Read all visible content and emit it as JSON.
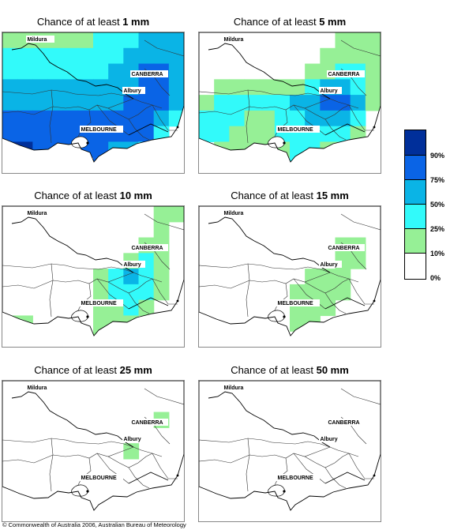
{
  "panels": [
    {
      "prefix": "Chance of at least ",
      "amount": "1 mm",
      "prob": [
        [
          1,
          1,
          1,
          1,
          1,
          1,
          2,
          2,
          2,
          3,
          3,
          3
        ],
        [
          2,
          2,
          2,
          2,
          2,
          2,
          2,
          2,
          3,
          3,
          3,
          3
        ],
        [
          2,
          2,
          2,
          2,
          2,
          2,
          2,
          3,
          3,
          4,
          4,
          3
        ],
        [
          3,
          3,
          3,
          3,
          3,
          3,
          3,
          3,
          3,
          4,
          4,
          3
        ],
        [
          3,
          3,
          3,
          3,
          3,
          3,
          3,
          3,
          4,
          4,
          4,
          3
        ],
        [
          4,
          4,
          4,
          4,
          4,
          4,
          4,
          4,
          4,
          4,
          3,
          2
        ],
        [
          4,
          4,
          4,
          4,
          4,
          4,
          4,
          4,
          4,
          4,
          2,
          0
        ],
        [
          5,
          5,
          4,
          4,
          4,
          4,
          4,
          3,
          3,
          2,
          0,
          0
        ],
        [
          0,
          0,
          0,
          0,
          0,
          0,
          4,
          3,
          0,
          0,
          0,
          0
        ]
      ]
    },
    {
      "prefix": "Chance of at least ",
      "amount": "5 mm",
      "prob": [
        [
          0,
          0,
          0,
          0,
          0,
          0,
          0,
          0,
          0,
          1,
          1,
          1
        ],
        [
          0,
          0,
          0,
          0,
          0,
          0,
          0,
          0,
          1,
          1,
          1,
          1
        ],
        [
          0,
          0,
          0,
          0,
          0,
          0,
          0,
          1,
          1,
          2,
          2,
          1
        ],
        [
          0,
          1,
          1,
          1,
          1,
          1,
          1,
          2,
          3,
          3,
          2,
          1
        ],
        [
          1,
          2,
          2,
          2,
          2,
          2,
          3,
          3,
          4,
          4,
          3,
          1
        ],
        [
          2,
          2,
          2,
          1,
          1,
          2,
          2,
          3,
          3,
          3,
          2,
          0
        ],
        [
          2,
          2,
          1,
          1,
          1,
          2,
          2,
          2,
          2,
          2,
          1,
          0
        ],
        [
          0,
          1,
          1,
          1,
          1,
          1,
          2,
          2,
          1,
          1,
          0,
          0
        ],
        [
          0,
          0,
          0,
          0,
          0,
          0,
          2,
          1,
          0,
          0,
          0,
          0
        ]
      ]
    },
    {
      "prefix": "Chance of at least ",
      "amount": "10 mm",
      "prob": [
        [
          0,
          0,
          0,
          0,
          0,
          0,
          0,
          0,
          0,
          0,
          1,
          1
        ],
        [
          0,
          0,
          0,
          0,
          0,
          0,
          0,
          0,
          0,
          0,
          1,
          0
        ],
        [
          0,
          0,
          0,
          0,
          0,
          0,
          0,
          0,
          0,
          1,
          1,
          0
        ],
        [
          0,
          0,
          0,
          0,
          0,
          0,
          0,
          0,
          1,
          2,
          1,
          0
        ],
        [
          0,
          0,
          0,
          0,
          0,
          0,
          1,
          2,
          3,
          2,
          1,
          0
        ],
        [
          0,
          0,
          0,
          0,
          0,
          0,
          1,
          2,
          2,
          2,
          1,
          0
        ],
        [
          0,
          0,
          0,
          0,
          0,
          0,
          1,
          1,
          2,
          1,
          0,
          0
        ],
        [
          1,
          1,
          0,
          0,
          0,
          0,
          1,
          1,
          1,
          0,
          0,
          0
        ],
        [
          0,
          0,
          0,
          0,
          0,
          0,
          1,
          0,
          0,
          0,
          0,
          0
        ]
      ]
    },
    {
      "prefix": "Chance of at least ",
      "amount": "15 mm",
      "prob": [
        [
          0,
          0,
          0,
          0,
          0,
          0,
          0,
          0,
          0,
          0,
          0,
          0
        ],
        [
          0,
          0,
          0,
          0,
          0,
          0,
          0,
          0,
          0,
          0,
          0,
          0
        ],
        [
          0,
          0,
          0,
          0,
          0,
          0,
          0,
          0,
          0,
          1,
          1,
          0
        ],
        [
          0,
          0,
          0,
          0,
          0,
          0,
          0,
          0,
          0,
          1,
          1,
          0
        ],
        [
          0,
          0,
          0,
          0,
          0,
          0,
          0,
          1,
          1,
          1,
          0,
          0
        ],
        [
          0,
          0,
          0,
          0,
          0,
          0,
          1,
          1,
          1,
          1,
          0,
          0
        ],
        [
          0,
          0,
          0,
          0,
          0,
          0,
          1,
          1,
          1,
          0,
          0,
          0
        ],
        [
          0,
          0,
          0,
          0,
          0,
          0,
          1,
          1,
          0,
          0,
          0,
          0
        ],
        [
          0,
          0,
          0,
          0,
          0,
          0,
          0,
          0,
          0,
          0,
          0,
          0
        ]
      ]
    },
    {
      "prefix": "Chance of at least ",
      "amount": "25 mm",
      "prob": [
        [
          0,
          0,
          0,
          0,
          0,
          0,
          0,
          0,
          0,
          0,
          0,
          0
        ],
        [
          0,
          0,
          0,
          0,
          0,
          0,
          0,
          0,
          0,
          0,
          0,
          0
        ],
        [
          0,
          0,
          0,
          0,
          0,
          0,
          0,
          0,
          0,
          0,
          1,
          0
        ],
        [
          0,
          0,
          0,
          0,
          0,
          0,
          0,
          0,
          0,
          0,
          0,
          0
        ],
        [
          0,
          0,
          0,
          0,
          0,
          0,
          0,
          0,
          1,
          0,
          0,
          0
        ],
        [
          0,
          0,
          0,
          0,
          0,
          0,
          0,
          0,
          0,
          0,
          0,
          0
        ],
        [
          0,
          0,
          0,
          0,
          0,
          0,
          0,
          0,
          0,
          0,
          0,
          0
        ],
        [
          0,
          0,
          0,
          0,
          0,
          0,
          0,
          0,
          0,
          0,
          0,
          0
        ],
        [
          0,
          0,
          0,
          0,
          0,
          0,
          0,
          0,
          0,
          0,
          0,
          0
        ]
      ]
    },
    {
      "prefix": "Chance of at least ",
      "amount": "50 mm",
      "prob": [
        [
          0,
          0,
          0,
          0,
          0,
          0,
          0,
          0,
          0,
          0,
          0,
          0
        ],
        [
          0,
          0,
          0,
          0,
          0,
          0,
          0,
          0,
          0,
          0,
          0,
          0
        ],
        [
          0,
          0,
          0,
          0,
          0,
          0,
          0,
          0,
          0,
          0,
          0,
          0
        ],
        [
          0,
          0,
          0,
          0,
          0,
          0,
          0,
          0,
          0,
          0,
          0,
          0
        ],
        [
          0,
          0,
          0,
          0,
          0,
          0,
          0,
          0,
          0,
          0,
          0,
          0
        ],
        [
          0,
          0,
          0,
          0,
          0,
          0,
          0,
          0,
          0,
          0,
          0,
          0
        ],
        [
          0,
          0,
          0,
          0,
          0,
          0,
          0,
          0,
          0,
          0,
          0,
          0
        ],
        [
          0,
          0,
          0,
          0,
          0,
          0,
          0,
          0,
          0,
          0,
          0,
          0
        ],
        [
          0,
          0,
          0,
          0,
          0,
          0,
          0,
          0,
          0,
          0,
          0,
          0
        ]
      ]
    }
  ],
  "cities": [
    "Mildura",
    "CANBERRA",
    "Albury",
    "MELBOURNE"
  ],
  "legend": {
    "labels": [
      "90%",
      "75%",
      "50%",
      "25%",
      "10%",
      "0%"
    ],
    "colors": [
      "#002f9a",
      "#0a64e6",
      "#0ab4e6",
      "#32fafa",
      "#96f096",
      "#ffffff"
    ]
  },
  "copyright": "© Commonwealth of Australia 2006, Australian Bureau of Meteorology"
}
